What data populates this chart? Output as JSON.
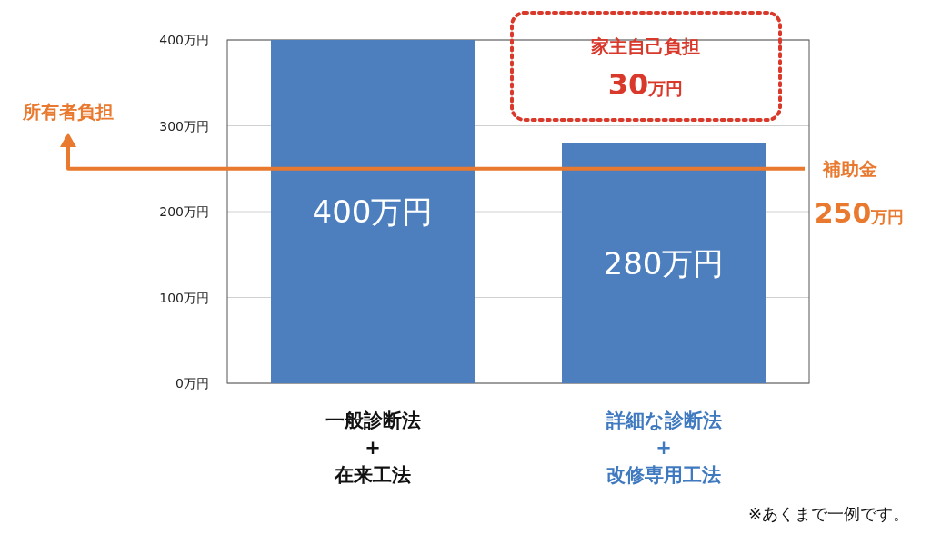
{
  "chart_data": {
    "type": "bar",
    "categories": [
      "一般診断法\n+\n在来工法",
      "詳細な診断法\n+\n改修専用工法"
    ],
    "values": [
      400,
      280
    ],
    "value_labels": [
      "400万円",
      "280万円"
    ],
    "color": "#4d7fbf",
    "ylim": [
      0,
      400
    ],
    "yticks": [
      {
        "value": 0,
        "label": "0万円"
      },
      {
        "value": 100,
        "label": "100万円"
      },
      {
        "value": 200,
        "label": "200万円"
      },
      {
        "value": 300,
        "label": "300万円"
      },
      {
        "value": 400,
        "label": "400万円"
      }
    ],
    "grid": "y",
    "ref_lines": [
      {
        "axis": "y",
        "value": 250,
        "label": "補助金",
        "color": "#e8792e"
      }
    ],
    "annotations": [
      "所有者負担",
      "250万円",
      "家主自己負担",
      "30万円",
      "※あくまで一例です。"
    ]
  }
}
